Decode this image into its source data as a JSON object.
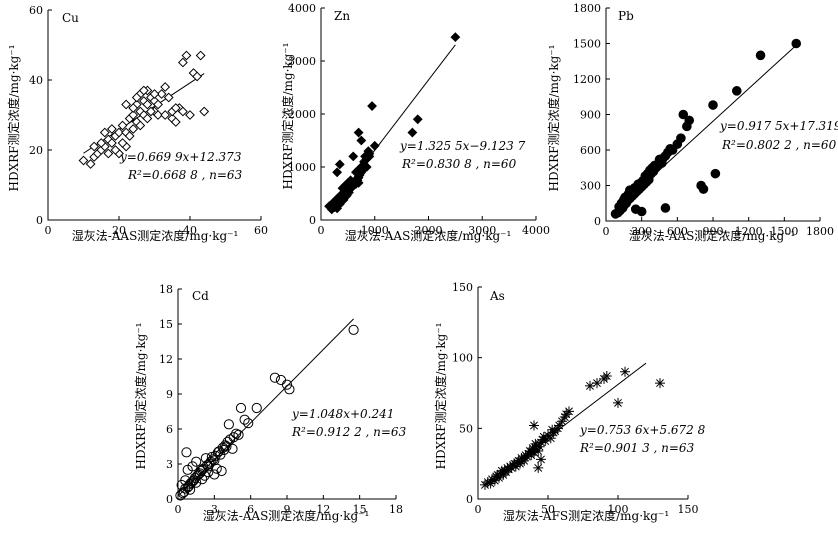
{
  "chart_data": [
    {
      "type": "scatter",
      "panel_label": "Cu",
      "xlabel": "湿灰法-AAS测定浓度/mg·kg⁻¹",
      "ylabel": "HDXRF测定浓度/mg·kg⁻¹",
      "xlim": [
        0,
        60
      ],
      "ylim": [
        0,
        60
      ],
      "xticks": [
        0,
        20,
        40,
        60
      ],
      "yticks": [
        0,
        20,
        40,
        60
      ],
      "marker": "diamond-open",
      "equation": "y=0.669 9x+12.373",
      "r2_text": "R²=0.668 8 , n=63",
      "fit": {
        "slope": 0.6699,
        "intercept": 12.373,
        "x_range": [
          10,
          44
        ]
      },
      "points": [
        [
          10,
          17
        ],
        [
          12,
          16
        ],
        [
          13,
          18
        ],
        [
          14,
          19
        ],
        [
          15,
          20
        ],
        [
          16,
          21
        ],
        [
          17,
          23
        ],
        [
          18,
          22
        ],
        [
          19,
          24
        ],
        [
          20,
          25
        ],
        [
          21,
          27
        ],
        [
          22,
          25
        ],
        [
          22,
          21
        ],
        [
          23,
          29
        ],
        [
          24,
          30
        ],
        [
          24,
          26
        ],
        [
          25,
          28
        ],
        [
          25,
          33
        ],
        [
          26,
          31
        ],
        [
          26,
          36
        ],
        [
          27,
          34
        ],
        [
          27,
          30
        ],
        [
          28,
          33
        ],
        [
          28,
          37
        ],
        [
          29,
          35
        ],
        [
          30,
          34
        ],
        [
          30,
          31
        ],
        [
          31,
          30
        ],
        [
          32,
          36
        ],
        [
          33,
          38
        ],
        [
          34,
          35
        ],
        [
          35,
          29
        ],
        [
          36,
          28
        ],
        [
          37,
          32
        ],
        [
          38,
          31
        ],
        [
          38,
          45
        ],
        [
          39,
          47
        ],
        [
          40,
          30
        ],
        [
          41,
          42
        ],
        [
          42,
          41
        ],
        [
          43,
          47
        ],
        [
          44,
          31
        ],
        [
          20,
          19
        ],
        [
          18,
          26
        ],
        [
          16,
          25
        ],
        [
          22,
          33
        ],
        [
          24,
          32
        ],
        [
          26,
          27
        ],
        [
          28,
          29
        ],
        [
          29,
          31
        ],
        [
          31,
          33
        ],
        [
          33,
          30
        ],
        [
          35,
          31
        ],
        [
          23,
          24
        ],
        [
          21,
          22
        ],
        [
          19,
          20
        ],
        [
          17,
          19
        ],
        [
          15,
          22
        ],
        [
          13,
          21
        ],
        [
          27,
          37
        ],
        [
          25,
          35
        ],
        [
          30,
          36
        ],
        [
          36,
          32
        ]
      ]
    },
    {
      "type": "scatter",
      "panel_label": "Zn",
      "xlabel": "湿灰法-AAS测定浓度/mg·kg⁻¹",
      "ylabel": "HDXRF测定浓度/mg·kg⁻¹",
      "xlim": [
        0,
        4000
      ],
      "ylim": [
        0,
        4000
      ],
      "xticks": [
        0,
        1000,
        2000,
        3000,
        4000
      ],
      "yticks": [
        0,
        1000,
        2000,
        3000,
        4000
      ],
      "marker": "diamond-filled",
      "equation": "y=1.325 5x−9.123 7",
      "r2_text": "R²=0.830 8 , n=60",
      "fit": {
        "slope": 1.3255,
        "intercept": -9.1237,
        "x_range": [
          150,
          2500
        ]
      },
      "points": [
        [
          150,
          260
        ],
        [
          200,
          200
        ],
        [
          250,
          240
        ],
        [
          280,
          300
        ],
        [
          300,
          220
        ],
        [
          320,
          350
        ],
        [
          350,
          300
        ],
        [
          380,
          400
        ],
        [
          400,
          420
        ],
        [
          420,
          380
        ],
        [
          450,
          500
        ],
        [
          480,
          460
        ],
        [
          500,
          550
        ],
        [
          520,
          520
        ],
        [
          550,
          600
        ],
        [
          580,
          620
        ],
        [
          600,
          650
        ],
        [
          620,
          700
        ],
        [
          650,
          680
        ],
        [
          680,
          750
        ],
        [
          700,
          800
        ],
        [
          720,
          850
        ],
        [
          750,
          900
        ],
        [
          780,
          950
        ],
        [
          800,
          1100
        ],
        [
          820,
          1200
        ],
        [
          850,
          1000
        ],
        [
          880,
          1300
        ],
        [
          900,
          1250
        ],
        [
          950,
          2150
        ],
        [
          1000,
          1400
        ],
        [
          1700,
          1650
        ],
        [
          1800,
          1900
        ],
        [
          2500,
          3450
        ],
        [
          300,
          900
        ],
        [
          350,
          1050
        ],
        [
          700,
          1650
        ],
        [
          750,
          1500
        ],
        [
          600,
          1200
        ],
        [
          400,
          600
        ],
        [
          450,
          650
        ],
        [
          500,
          700
        ],
        [
          550,
          750
        ],
        [
          650,
          900
        ],
        [
          700,
          950
        ],
        [
          750,
          1000
        ],
        [
          800,
          1050
        ],
        [
          850,
          1150
        ],
        [
          900,
          1200
        ],
        [
          200,
          300
        ],
        [
          250,
          350
        ],
        [
          300,
          400
        ],
        [
          350,
          450
        ],
        [
          400,
          500
        ],
        [
          450,
          550
        ],
        [
          500,
          600
        ],
        [
          550,
          650
        ],
        [
          600,
          700
        ],
        [
          650,
          750
        ],
        [
          700,
          700
        ]
      ]
    },
    {
      "type": "scatter",
      "panel_label": "Pb",
      "xlabel": "湿灰法-AAS测定浓度/mg·kg⁻¹",
      "ylabel": "HDXRF测定浓度/mg·kg⁻¹",
      "xlim": [
        0,
        1800
      ],
      "ylim": [
        0,
        1800
      ],
      "xticks": [
        0,
        300,
        600,
        900,
        1200,
        1500,
        1800
      ],
      "yticks": [
        0,
        300,
        600,
        900,
        1200,
        1500,
        1800
      ],
      "marker": "circle-filled",
      "equation": "y=0.917 5x+17.319",
      "r2_text": "R²=0.802 2 , n=60",
      "fit": {
        "slope": 0.9175,
        "intercept": 17.319,
        "x_range": [
          70,
          1600
        ]
      },
      "points": [
        [
          80,
          60
        ],
        [
          100,
          70
        ],
        [
          120,
          90
        ],
        [
          140,
          110
        ],
        [
          150,
          130
        ],
        [
          170,
          150
        ],
        [
          180,
          170
        ],
        [
          200,
          190
        ],
        [
          220,
          210
        ],
        [
          240,
          230
        ],
        [
          260,
          250
        ],
        [
          280,
          270
        ],
        [
          300,
          290
        ],
        [
          320,
          310
        ],
        [
          340,
          330
        ],
        [
          360,
          350
        ],
        [
          380,
          400
        ],
        [
          400,
          420
        ],
        [
          420,
          450
        ],
        [
          440,
          480
        ],
        [
          460,
          500
        ],
        [
          480,
          530
        ],
        [
          500,
          550
        ],
        [
          520,
          580
        ],
        [
          540,
          610
        ],
        [
          560,
          600
        ],
        [
          600,
          650
        ],
        [
          630,
          700
        ],
        [
          650,
          900
        ],
        [
          680,
          800
        ],
        [
          700,
          850
        ],
        [
          800,
          300
        ],
        [
          820,
          270
        ],
        [
          900,
          980
        ],
        [
          920,
          400
        ],
        [
          1100,
          1100
        ],
        [
          1300,
          1400
        ],
        [
          1600,
          1500
        ],
        [
          250,
          100
        ],
        [
          300,
          80
        ],
        [
          500,
          110
        ],
        [
          200,
          260
        ],
        [
          240,
          280
        ],
        [
          270,
          310
        ],
        [
          310,
          340
        ],
        [
          330,
          380
        ],
        [
          350,
          400
        ],
        [
          370,
          430
        ],
        [
          390,
          450
        ],
        [
          410,
          470
        ],
        [
          150,
          180
        ],
        [
          160,
          200
        ],
        [
          130,
          150
        ],
        [
          110,
          120
        ],
        [
          190,
          230
        ],
        [
          210,
          250
        ],
        [
          230,
          260
        ],
        [
          290,
          320
        ],
        [
          450,
          520
        ],
        [
          470,
          490
        ]
      ]
    },
    {
      "type": "scatter",
      "panel_label": "Cd",
      "xlabel": "湿灰法-AAS测定浓度/mg·kg⁻¹",
      "ylabel": "HDXRF测定浓度/mg·kg⁻¹",
      "xlim": [
        0,
        18
      ],
      "ylim": [
        0,
        18
      ],
      "xticks": [
        0,
        3,
        6,
        9,
        12,
        15,
        18
      ],
      "yticks": [
        0,
        3,
        6,
        9,
        12,
        15,
        18
      ],
      "marker": "circle-open",
      "equation": "y=1.048x+0.241",
      "r2_text": "R²=0.912 2 , n=63",
      "fit": {
        "slope": 1.048,
        "intercept": 0.241,
        "x_range": [
          0,
          14.5
        ]
      },
      "points": [
        [
          0.2,
          0.3
        ],
        [
          0.3,
          1.2
        ],
        [
          0.5,
          0.6
        ],
        [
          0.6,
          0.9
        ],
        [
          0.7,
          4.0
        ],
        [
          0.8,
          1.0
        ],
        [
          1.0,
          1.3
        ],
        [
          1.2,
          1.5
        ],
        [
          1.4,
          1.8
        ],
        [
          1.5,
          3.2
        ],
        [
          1.6,
          2.0
        ],
        [
          1.8,
          2.2
        ],
        [
          2.0,
          2.5
        ],
        [
          2.2,
          2.0
        ],
        [
          2.3,
          3.5
        ],
        [
          2.5,
          2.8
        ],
        [
          2.6,
          3.0
        ],
        [
          2.8,
          3.6
        ],
        [
          3.0,
          3.3
        ],
        [
          3.0,
          2.1
        ],
        [
          3.2,
          2.6
        ],
        [
          3.3,
          4.0
        ],
        [
          3.5,
          3.8
        ],
        [
          3.6,
          2.4
        ],
        [
          3.8,
          4.2
        ],
        [
          4.0,
          4.5
        ],
        [
          4.2,
          6.4
        ],
        [
          4.5,
          4.3
        ],
        [
          5.0,
          5.5
        ],
        [
          5.2,
          7.8
        ],
        [
          5.5,
          6.8
        ],
        [
          5.8,
          6.5
        ],
        [
          6.5,
          7.8
        ],
        [
          8.0,
          10.4
        ],
        [
          8.5,
          10.2
        ],
        [
          9.0,
          9.8
        ],
        [
          9.2,
          9.4
        ],
        [
          14.5,
          14.5
        ],
        [
          0.4,
          0.5
        ],
        [
          0.9,
          1.1
        ],
        [
          1.1,
          1.4
        ],
        [
          1.3,
          1.6
        ],
        [
          1.7,
          2.1
        ],
        [
          1.9,
          2.4
        ],
        [
          2.1,
          2.6
        ],
        [
          2.4,
          2.9
        ],
        [
          2.7,
          3.2
        ],
        [
          2.9,
          3.4
        ],
        [
          3.1,
          3.7
        ],
        [
          3.4,
          4.1
        ],
        [
          3.7,
          4.4
        ],
        [
          3.9,
          4.6
        ],
        [
          4.1,
          4.9
        ],
        [
          4.3,
          5.1
        ],
        [
          4.6,
          5.3
        ],
        [
          4.8,
          5.6
        ],
        [
          1.0,
          0.8
        ],
        [
          1.5,
          1.4
        ],
        [
          2.0,
          1.7
        ],
        [
          2.5,
          2.3
        ],
        [
          0.6,
          1.6
        ],
        [
          0.8,
          2.5
        ],
        [
          1.2,
          2.8
        ]
      ]
    },
    {
      "type": "scatter",
      "panel_label": "As",
      "xlabel": "湿灰法-AFS测定浓度/mg·kg⁻¹",
      "ylabel": "HDXRF测定浓度/mg·kg⁻¹",
      "xlim": [
        0,
        150
      ],
      "ylim": [
        0,
        150
      ],
      "xticks": [
        0,
        50,
        100,
        150
      ],
      "yticks": [
        0,
        50,
        100,
        150
      ],
      "marker": "star",
      "equation": "y=0.753 6x+5.672 8",
      "r2_text": "R²=0.901 3 , n=63",
      "fit": {
        "slope": 0.7536,
        "intercept": 5.6728,
        "x_range": [
          5,
          120
        ]
      },
      "points": [
        [
          5,
          10
        ],
        [
          7,
          12
        ],
        [
          9,
          11
        ],
        [
          10,
          14
        ],
        [
          12,
          13
        ],
        [
          13,
          16
        ],
        [
          15,
          15
        ],
        [
          16,
          18
        ],
        [
          18,
          17
        ],
        [
          20,
          19
        ],
        [
          22,
          21
        ],
        [
          24,
          22
        ],
        [
          25,
          24
        ],
        [
          27,
          23
        ],
        [
          28,
          26
        ],
        [
          30,
          25
        ],
        [
          32,
          28
        ],
        [
          33,
          27
        ],
        [
          35,
          30
        ],
        [
          36,
          32
        ],
        [
          38,
          31
        ],
        [
          40,
          33
        ],
        [
          40,
          35
        ],
        [
          42,
          38
        ],
        [
          43,
          34
        ],
        [
          44,
          37
        ],
        [
          45,
          40
        ],
        [
          46,
          42
        ],
        [
          48,
          41
        ],
        [
          50,
          45
        ],
        [
          52,
          43
        ],
        [
          54,
          47
        ],
        [
          55,
          48
        ],
        [
          57,
          50
        ],
        [
          58,
          52
        ],
        [
          60,
          55
        ],
        [
          62,
          58
        ],
        [
          63,
          60
        ],
        [
          65,
          62
        ],
        [
          40,
          52
        ],
        [
          45,
          28
        ],
        [
          43,
          22
        ],
        [
          80,
          80
        ],
        [
          85,
          82
        ],
        [
          90,
          85
        ],
        [
          92,
          87
        ],
        [
          100,
          68
        ],
        [
          105,
          90
        ],
        [
          130,
          82
        ],
        [
          14,
          17
        ],
        [
          17,
          20
        ],
        [
          19,
          20
        ],
        [
          21,
          22
        ],
        [
          23,
          23
        ],
        [
          26,
          25
        ],
        [
          29,
          27
        ],
        [
          31,
          29
        ],
        [
          34,
          31
        ],
        [
          37,
          34
        ],
        [
          39,
          36
        ],
        [
          41,
          39
        ],
        [
          47,
          44
        ],
        [
          53,
          49
        ]
      ]
    }
  ]
}
